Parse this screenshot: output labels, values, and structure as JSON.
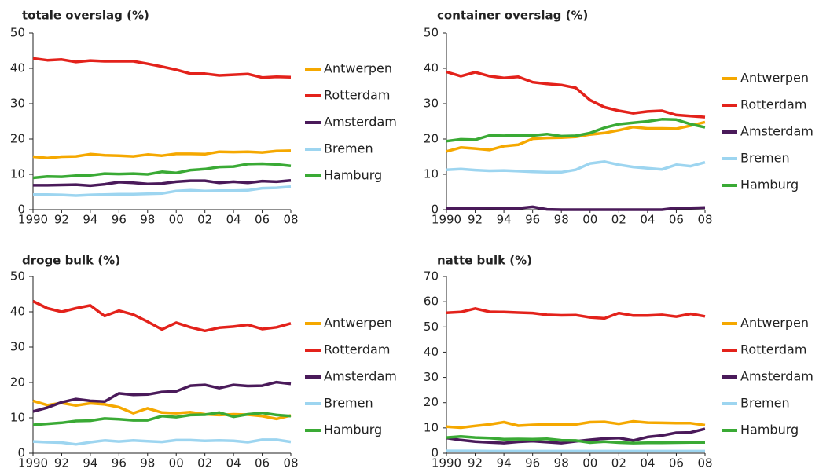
{
  "chart_data": [
    {
      "type": "line",
      "title": "totale overslag (%)",
      "categories": [
        "1990",
        null,
        "92",
        null,
        "94",
        null,
        "96",
        null,
        "98",
        null,
        "00",
        null,
        "02",
        null,
        "04",
        null,
        "06",
        null,
        "08"
      ],
      "ylim": [
        0,
        50
      ],
      "yticks": [
        0,
        10,
        20,
        30,
        40,
        50
      ],
      "series": [
        {
          "name": "Antwerpen",
          "color": "#f5a800",
          "values": [
            15,
            14.6,
            15,
            15.1,
            15.7,
            15.4,
            15.3,
            15.1,
            15.6,
            15.3,
            15.8,
            15.8,
            15.7,
            16.4,
            16.3,
            16.4,
            16.2,
            16.6,
            16.7
          ]
        },
        {
          "name": "Rotterdam",
          "color": "#e3221b",
          "values": [
            42.8,
            42.3,
            42.5,
            41.8,
            42.2,
            42,
            42,
            42,
            41.3,
            40.5,
            39.6,
            38.5,
            38.5,
            38,
            38.2,
            38.4,
            37.4,
            37.6,
            37.5
          ]
        },
        {
          "name": "Amsterdam",
          "color": "#4a1a5a",
          "values": [
            6.9,
            6.9,
            7,
            7.1,
            6.8,
            7.2,
            7.8,
            7.6,
            7.3,
            7.4,
            7.9,
            8.2,
            8.2,
            7.6,
            7.9,
            7.6,
            8.1,
            7.9,
            8.3
          ]
        },
        {
          "name": "Bremen",
          "color": "#9dd5f0",
          "values": [
            4.3,
            4.3,
            4.2,
            4,
            4.2,
            4.3,
            4.4,
            4.4,
            4.5,
            4.6,
            5.3,
            5.5,
            5.3,
            5.4,
            5.4,
            5.5,
            6.1,
            6.2,
            6.5
          ]
        },
        {
          "name": "Hamburg",
          "color": "#3aaa35",
          "values": [
            9,
            9.4,
            9.3,
            9.6,
            9.7,
            10.2,
            10.1,
            10.2,
            10,
            10.7,
            10.4,
            11.2,
            11.5,
            12.1,
            12.2,
            12.9,
            13,
            12.8,
            12.4
          ]
        }
      ]
    },
    {
      "type": "line",
      "title": "container overslag  (%)",
      "categories": [
        "1990",
        null,
        "92",
        null,
        "94",
        null,
        "96",
        null,
        "98",
        null,
        "00",
        null,
        "02",
        null,
        "04",
        null,
        "06",
        null,
        "08"
      ],
      "ylim": [
        0,
        50
      ],
      "yticks": [
        0,
        10,
        20,
        30,
        40,
        50
      ],
      "series": [
        {
          "name": "Antwerpen",
          "color": "#f5a800",
          "values": [
            16.5,
            17.6,
            17.3,
            16.9,
            18,
            18.4,
            20.1,
            20.3,
            20.4,
            20.6,
            21.3,
            21.7,
            22.5,
            23.4,
            23,
            23,
            22.9,
            23.8,
            24.8
          ]
        },
        {
          "name": "Rotterdam",
          "color": "#e3221b",
          "values": [
            39,
            37.8,
            38.9,
            37.8,
            37.3,
            37.6,
            36.1,
            35.6,
            35.3,
            34.5,
            31,
            29,
            28,
            27.3,
            27.8,
            28,
            26.8,
            26.5,
            26.2
          ]
        },
        {
          "name": "Amsterdam",
          "color": "#4a1a5a",
          "values": [
            0.3,
            0.3,
            0.4,
            0.5,
            0.4,
            0.4,
            0.8,
            0.1,
            0,
            0,
            0,
            0,
            0,
            0,
            0,
            0,
            0.5,
            0.5,
            0.6
          ]
        },
        {
          "name": "Bremen",
          "color": "#9dd5f0",
          "values": [
            11.3,
            11.5,
            11.2,
            11,
            11.1,
            10.9,
            10.7,
            10.6,
            10.6,
            11.3,
            13.1,
            13.6,
            12.7,
            12.1,
            11.7,
            11.4,
            12.7,
            12.3,
            13.4
          ]
        },
        {
          "name": "Hamburg",
          "color": "#3aaa35",
          "values": [
            19.4,
            19.9,
            19.8,
            21,
            20.9,
            21.1,
            21,
            21.4,
            20.8,
            20.9,
            21.7,
            23.2,
            24.2,
            24.6,
            25,
            25.6,
            25.5,
            24.2,
            23.3
          ]
        }
      ]
    },
    {
      "type": "line",
      "title": "droge bulk (%)",
      "categories": [
        "1990",
        null,
        "92",
        null,
        "94",
        null,
        "96",
        null,
        "98",
        null,
        "00",
        null,
        "02",
        null,
        "04",
        null,
        "06",
        null,
        "08"
      ],
      "ylim": [
        0,
        50
      ],
      "yticks": [
        0,
        10,
        20,
        30,
        40,
        50
      ],
      "series": [
        {
          "name": "Antwerpen",
          "color": "#f5a800",
          "values": [
            14.8,
            13.6,
            14.2,
            13.5,
            14.1,
            13.8,
            13,
            11.3,
            12.7,
            11.5,
            11.3,
            11.6,
            11,
            10.8,
            11,
            10.9,
            10.5,
            9.7,
            10.7
          ]
        },
        {
          "name": "Rotterdam",
          "color": "#e3221b",
          "values": [
            43,
            41,
            40,
            41,
            41.8,
            38.8,
            40.3,
            39.2,
            37.2,
            35,
            36.9,
            35.6,
            34.6,
            35.5,
            35.8,
            36.3,
            35.1,
            35.6,
            36.7
          ]
        },
        {
          "name": "Amsterdam",
          "color": "#4a1a5a",
          "values": [
            11.8,
            12.9,
            14.4,
            15.3,
            14.8,
            14.6,
            16.9,
            16.5,
            16.6,
            17.3,
            17.5,
            19.1,
            19.3,
            18.4,
            19.3,
            19,
            19.1,
            20.1,
            19.6
          ]
        },
        {
          "name": "Bremen",
          "color": "#9dd5f0",
          "values": [
            3.3,
            3.1,
            3,
            2.5,
            3.1,
            3.6,
            3.3,
            3.6,
            3.4,
            3.2,
            3.7,
            3.7,
            3.5,
            3.6,
            3.5,
            3.1,
            3.8,
            3.8,
            3.2
          ]
        },
        {
          "name": "Hamburg",
          "color": "#3aaa35",
          "values": [
            8,
            8.3,
            8.6,
            9.1,
            9.2,
            9.8,
            9.6,
            9.3,
            9.3,
            10.5,
            10.2,
            10.8,
            10.9,
            11.5,
            10.3,
            11,
            11.4,
            10.8,
            10.5
          ]
        }
      ]
    },
    {
      "type": "line",
      "title": "natte bulk (%)",
      "categories": [
        "1990",
        null,
        "92",
        null,
        "94",
        null,
        "96",
        null,
        "98",
        null,
        "00",
        null,
        "02",
        null,
        "04",
        null,
        "06",
        null,
        "08"
      ],
      "ylim": [
        0,
        70
      ],
      "yticks": [
        0,
        10,
        20,
        30,
        40,
        50,
        60,
        70
      ],
      "series": [
        {
          "name": "Antwerpen",
          "color": "#f5a800",
          "values": [
            10.5,
            10.1,
            10.8,
            11.4,
            12.3,
            10.9,
            11.2,
            11.4,
            11.3,
            11.4,
            12.3,
            12.4,
            11.6,
            12.6,
            12.1,
            12,
            11.9,
            11.9,
            11.1
          ]
        },
        {
          "name": "Rotterdam",
          "color": "#e3221b",
          "values": [
            55.6,
            55.9,
            57.3,
            56,
            55.9,
            55.7,
            55.5,
            54.8,
            54.6,
            54.7,
            53.8,
            53.4,
            55.5,
            54.5,
            54.5,
            54.8,
            54.1,
            55.2,
            54.2
          ]
        },
        {
          "name": "Amsterdam",
          "color": "#4a1a5a",
          "values": [
            6,
            5.2,
            4.6,
            4.3,
            4,
            4.5,
            4.8,
            4.4,
            4,
            4.7,
            5.3,
            5.8,
            6,
            5,
            6.4,
            7,
            8.1,
            8.2,
            9.6
          ]
        },
        {
          "name": "Bremen",
          "color": "#9dd5f0",
          "values": [
            0.9,
            0.9,
            0.9,
            0.8,
            0.8,
            0.8,
            0.8,
            0.8,
            0.8,
            0.8,
            0.8,
            0.8,
            0.8,
            0.8,
            0.8,
            0.8,
            0.8,
            0.8,
            0.8
          ]
        },
        {
          "name": "Hamburg",
          "color": "#3aaa35",
          "values": [
            6.2,
            6.6,
            6.2,
            6,
            5.5,
            5.6,
            5.5,
            5.7,
            5.1,
            5,
            4.2,
            4.6,
            4.2,
            4,
            4.1,
            4.1,
            4.2,
            4.3,
            4.3
          ]
        }
      ]
    }
  ]
}
